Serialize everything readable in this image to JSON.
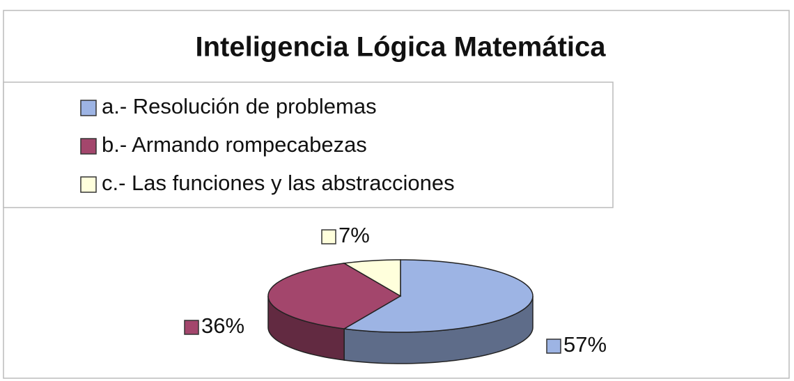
{
  "chart_data": {
    "type": "pie",
    "title": "Inteligencia Lógica Matemática",
    "categories": [
      "a.- Resolución de problemas",
      "b.- Armando rompecabezas",
      "c.- Las funciones y las abstracciones"
    ],
    "values": [
      57,
      36,
      7
    ],
    "value_labels": [
      "57%",
      "36%",
      "7%"
    ],
    "colors": [
      "#9db4e4",
      "#a3466c",
      "#ffffdc"
    ]
  }
}
